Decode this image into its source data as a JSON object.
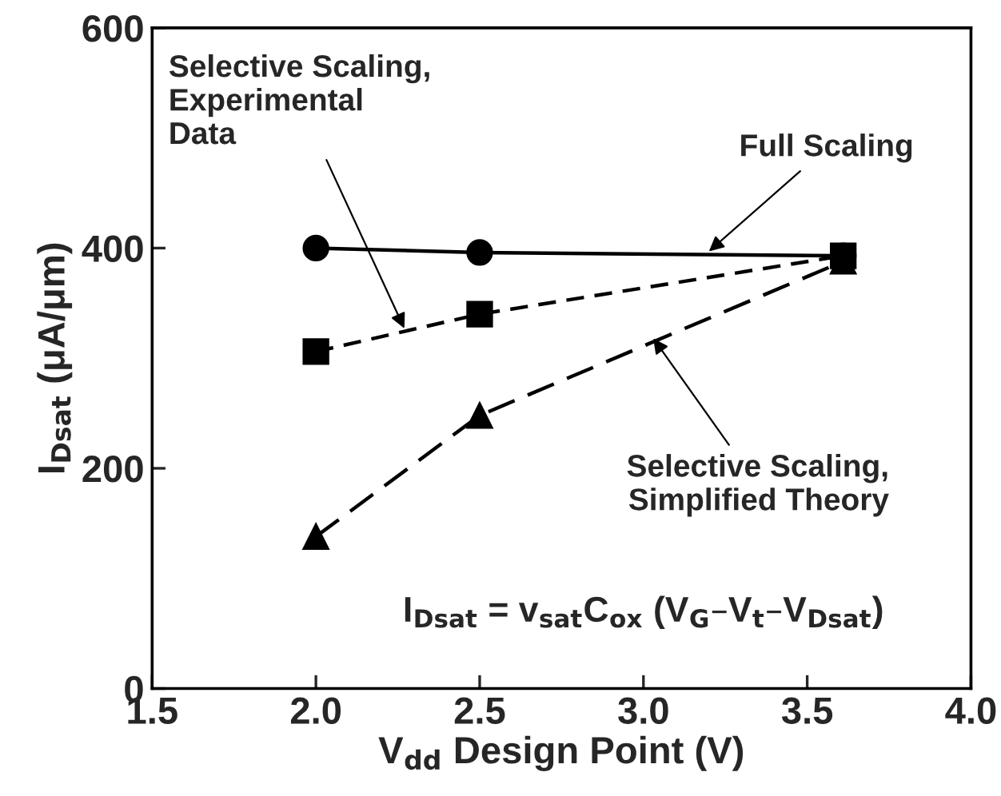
{
  "chart_data": {
    "type": "line",
    "xlabel": "V$_{dd}$ Design Point (V)",
    "ylabel": "I$_{Dsat}$ (μA/μm)",
    "xlim": [
      1.5,
      4.0
    ],
    "xticks": [
      {
        "value": 1.5,
        "label": "1.5"
      },
      {
        "value": 2.0,
        "label": "2.0"
      },
      {
        "value": 2.5,
        "label": "2.5"
      },
      {
        "value": 3.0,
        "label": "3.0"
      },
      {
        "value": 3.5,
        "label": "3.5"
      },
      {
        "value": 4.0,
        "label": "4.0"
      }
    ],
    "ylim": [
      0,
      600
    ],
    "yticks": [
      0,
      200,
      400,
      600
    ],
    "grid": false,
    "legend": false,
    "series": [
      {
        "color": "#000000",
        "x": [
          2.0,
          2.5,
          3.61
        ],
        "values": [
          400,
          396,
          393
        ],
        "marker": "circle",
        "line_style": "solid"
      },
      {
        "color": "#000000",
        "x": [
          2.0,
          2.5,
          3.61
        ],
        "values": [
          306,
          340,
          393
        ],
        "marker": "square",
        "line_style": "dashed"
      },
      {
        "color": "#000000",
        "x": [
          2.0,
          2.5,
          3.61
        ],
        "values": [
          138,
          248,
          388
        ],
        "marker": "triangle",
        "line_style": "dashed"
      }
    ],
    "annotations": [
      {
        "text": "Full Scaling",
        "x": 3.2,
        "y": 397
      },
      {
        "text": "Selective Scaling,\nExperimental\nData",
        "x": 2.27,
        "y": 327
      },
      {
        "text": "Selective Scaling,\nSimplified Theory",
        "x": 3.03,
        "y": 318
      },
      "I$_{Dsat}$ = v$_{sat}$C$_{ox}$ (V$_{G}$–V$_{t}$–V$_{Dsat}$)"
    ]
  }
}
